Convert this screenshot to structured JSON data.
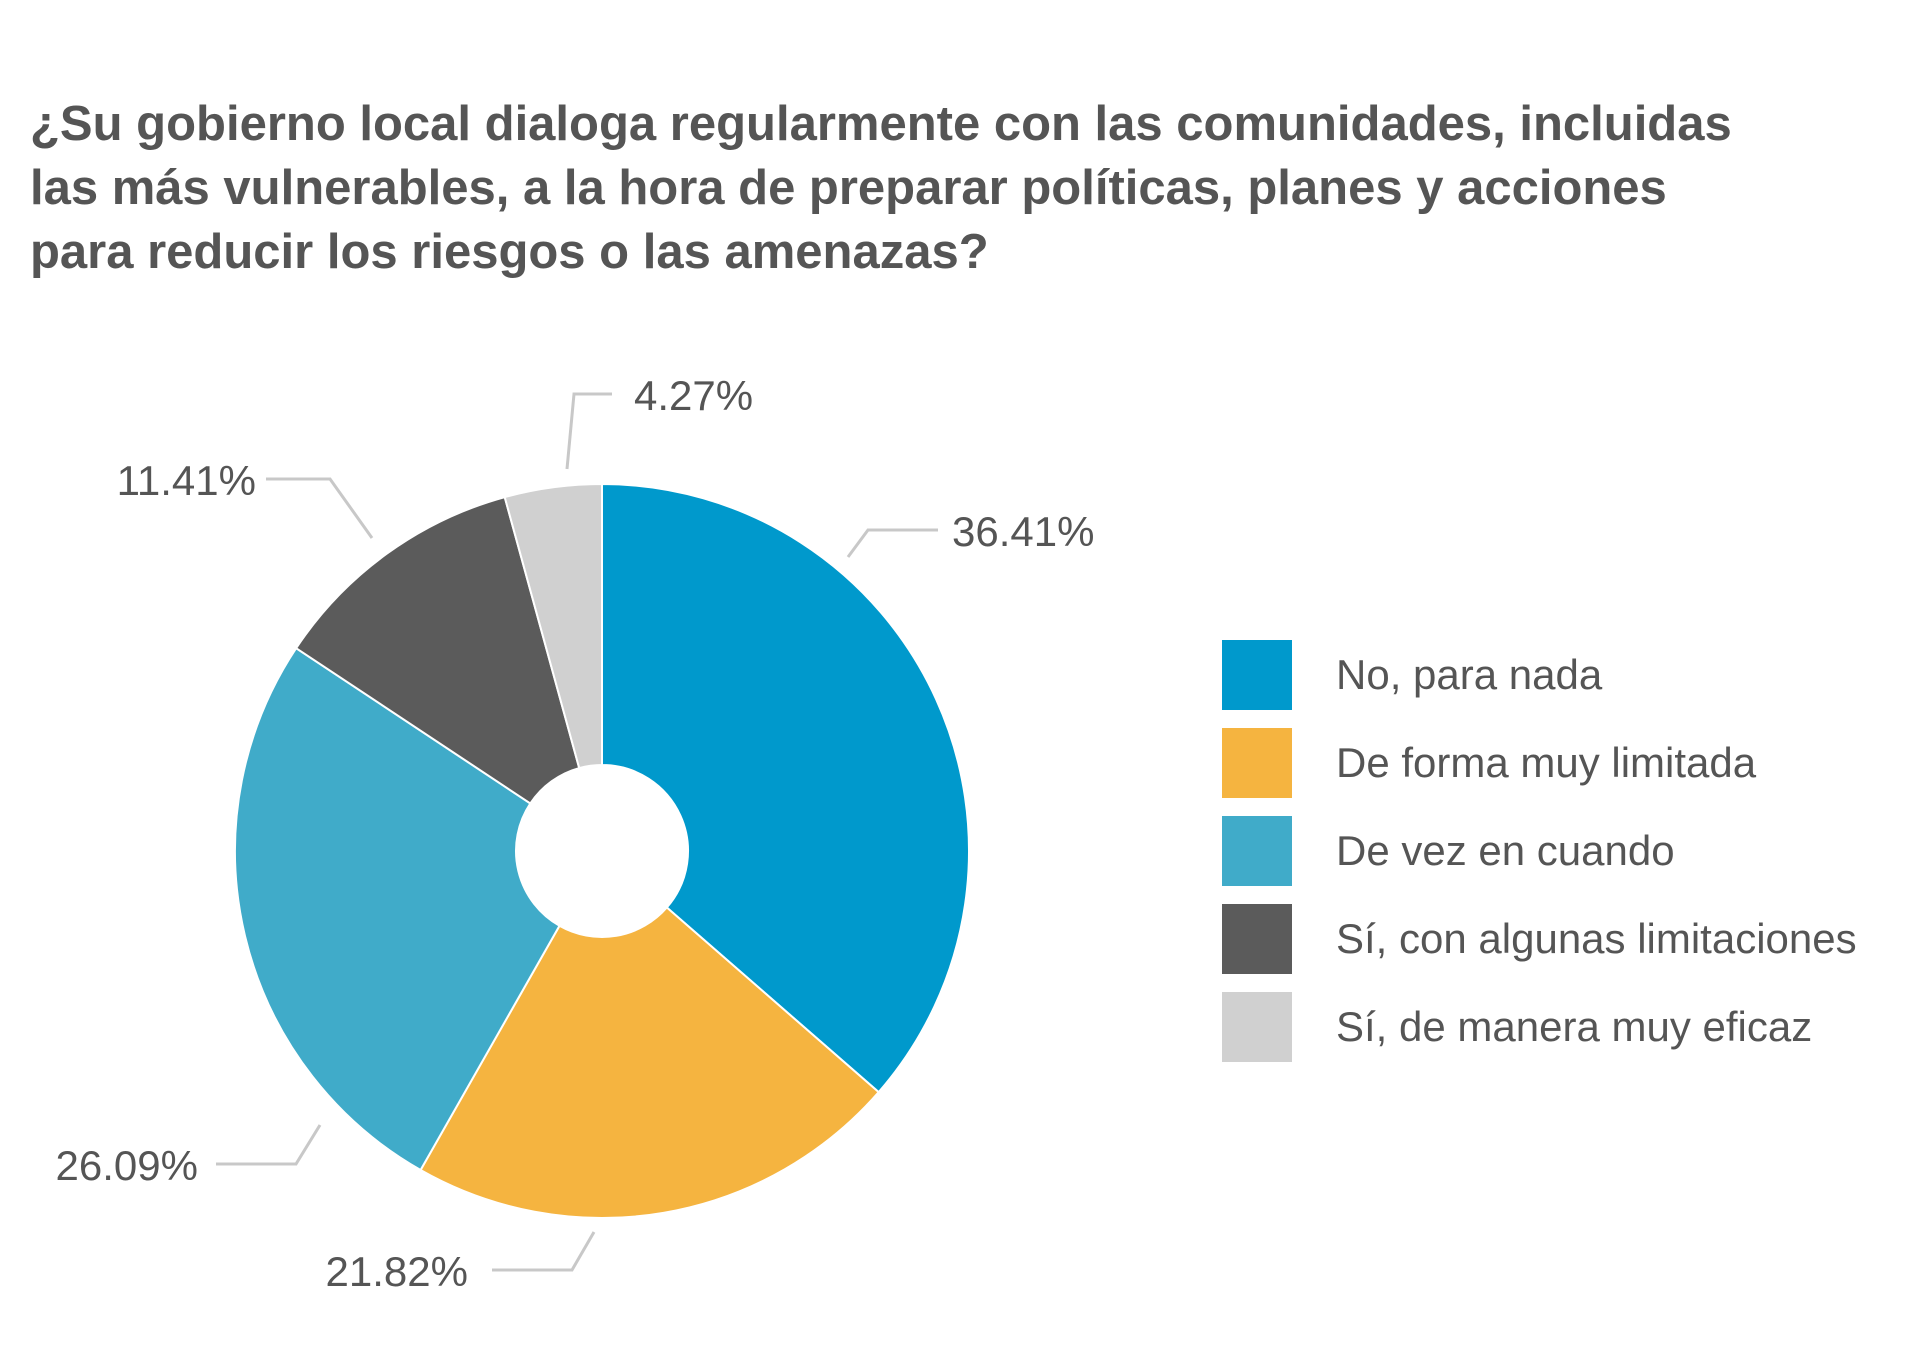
{
  "chart_data": {
    "type": "pie",
    "title_lines": [
      "¿Su gobierno local dialoga regularmente con las comunidades, incluidas",
      "las más vulnerables, a la hora de preparar políticas, planes y acciones",
      "para reducir los riesgos o las amenazas?"
    ],
    "slices": [
      {
        "name": "No, para nada",
        "value": 36.41,
        "label": "36.41%",
        "color": "#0099CC"
      },
      {
        "name": "De forma muy limitada",
        "value": 21.82,
        "label": "21.82%",
        "color": "#F5B440"
      },
      {
        "name": "De vez en cuando",
        "value": 26.09,
        "label": "26.09%",
        "color": "#40ABC9"
      },
      {
        "name": "Sí, con algunas limitaciones",
        "value": 11.41,
        "label": "11.41%",
        "color": "#5B5B5B"
      },
      {
        "name": "Sí, de manera muy eficaz",
        "value": 4.27,
        "label": "4.27%",
        "color": "#D0D0D0"
      }
    ],
    "legend_position": "right",
    "leader_line_color": "#C8C8C8"
  }
}
